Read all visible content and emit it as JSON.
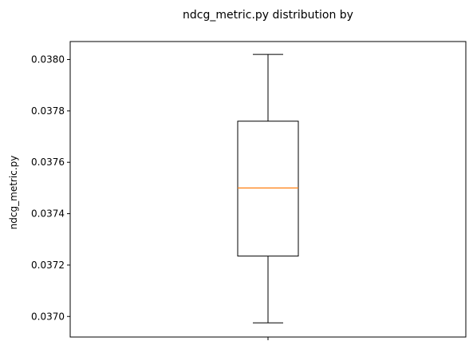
{
  "chart_data": {
    "type": "box",
    "title": "ndcg_metric.py distribution by",
    "xlabel": "",
    "ylabel": "ndcg_metric.py",
    "categories": [
      ""
    ],
    "ylim": [
      0.03692,
      0.03807
    ],
    "yticks": [
      0.037,
      0.0372,
      0.0374,
      0.0376,
      0.0378,
      0.038
    ],
    "ytick_labels": [
      "0.0370",
      "0.0372",
      "0.0374",
      "0.0376",
      "0.0378",
      "0.0380"
    ],
    "grid": false,
    "boxes": [
      {
        "whisker_low": 0.036975,
        "q1": 0.037235,
        "median": 0.0375,
        "q3": 0.03776,
        "whisker_high": 0.03802
      }
    ],
    "colors": {
      "box": "#000000",
      "median": "#ff7f0e"
    }
  }
}
